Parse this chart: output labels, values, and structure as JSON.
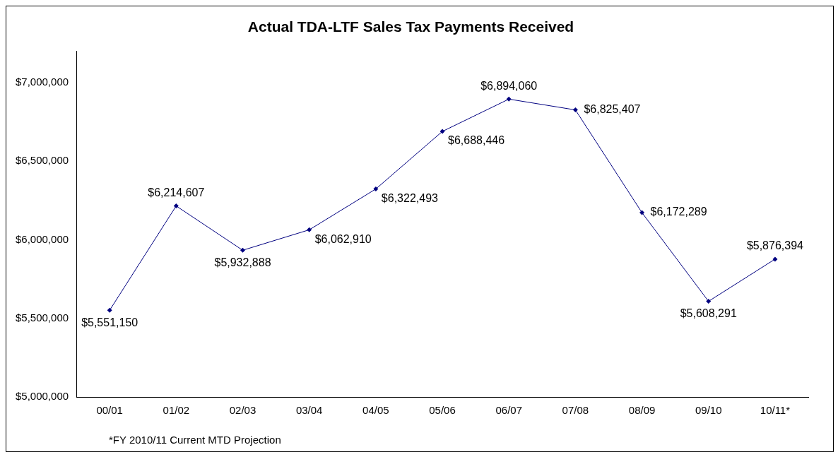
{
  "chart_data": {
    "type": "line",
    "title": "Actual TDA-LTF Sales Tax Payments Received",
    "categories": [
      "00/01",
      "01/02",
      "02/03",
      "03/04",
      "04/05",
      "05/06",
      "06/07",
      "07/08",
      "08/09",
      "09/10",
      "10/11*"
    ],
    "series": [
      {
        "color": "#000080",
        "values": [
          5551150,
          6214607,
          5932888,
          6062910,
          6322493,
          6688446,
          6894060,
          6825407,
          6172289,
          5608291,
          5876394
        ],
        "value_labels": [
          "$5,551,150",
          "$6,214,607",
          "$5,932,888",
          "$6,062,910",
          "$6,322,493",
          "$6,688,446",
          "$6,894,060",
          "$6,825,407",
          "$6,172,289",
          "$5,608,291",
          "$5,876,394"
        ]
      }
    ],
    "ylim": [
      5000000,
      7200000
    ],
    "yticks": [
      {
        "value": 5000000,
        "label": "$5,000,000"
      },
      {
        "value": 5500000,
        "label": "$5,500,000"
      },
      {
        "value": 6000000,
        "label": "$6,000,000"
      },
      {
        "value": 6500000,
        "label": "$6,500,000"
      },
      {
        "value": 7000000,
        "label": "$7,000,000"
      }
    ],
    "grid": false,
    "legend": false,
    "marker": "diamond",
    "line_style": "solid",
    "annotations": [
      "*FY 2010/11 Current MTD Projection"
    ]
  }
}
